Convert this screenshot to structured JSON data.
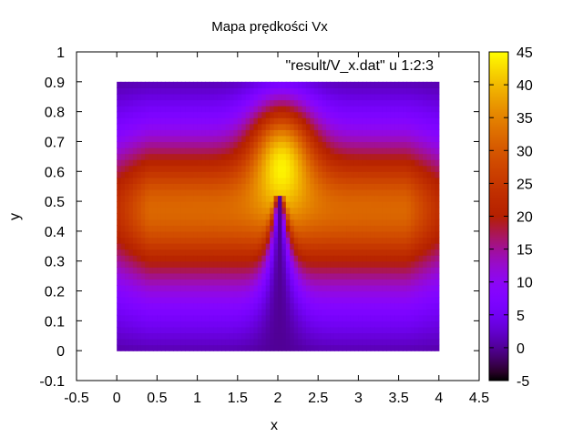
{
  "chart_data": {
    "type": "heatmap",
    "title": "Mapa prędkości Vx",
    "xlabel": "x",
    "ylabel": "y",
    "legend_entry": "\"result/V_x.dat\" u 1:2:3",
    "legend_position": "top-right",
    "xlim": [
      -0.5,
      4.5
    ],
    "ylim": [
      -0.1,
      1.0
    ],
    "x_ticks": [
      "-0.5",
      "0",
      "0.5",
      "1",
      "1.5",
      "2",
      "2.5",
      "3",
      "3.5",
      "4",
      "4.5"
    ],
    "y_ticks": [
      "-0.1",
      "0",
      "0.1",
      "0.2",
      "0.3",
      "0.4",
      "0.5",
      "0.6",
      "0.7",
      "0.8",
      "0.9",
      "1"
    ],
    "data_extent": {
      "x": [
        0,
        4
      ],
      "y": [
        0,
        0.9
      ]
    },
    "colorbar": {
      "range": [
        -5,
        45
      ],
      "ticks": [
        "-5",
        "0",
        "5",
        "10",
        "15",
        "20",
        "25",
        "30",
        "35",
        "40",
        "45"
      ],
      "colormap": "gnuplot-pm3d-hot"
    },
    "features": [
      {
        "description": "hot spot maximum",
        "x": 2.05,
        "y": 0.68,
        "value": 44
      },
      {
        "description": "low-velocity wedge apex",
        "x": 2.02,
        "y": 0.51,
        "value": 0
      },
      {
        "description": "core flow band",
        "y_range": [
          0.35,
          0.6
        ],
        "value": 23
      }
    ]
  }
}
